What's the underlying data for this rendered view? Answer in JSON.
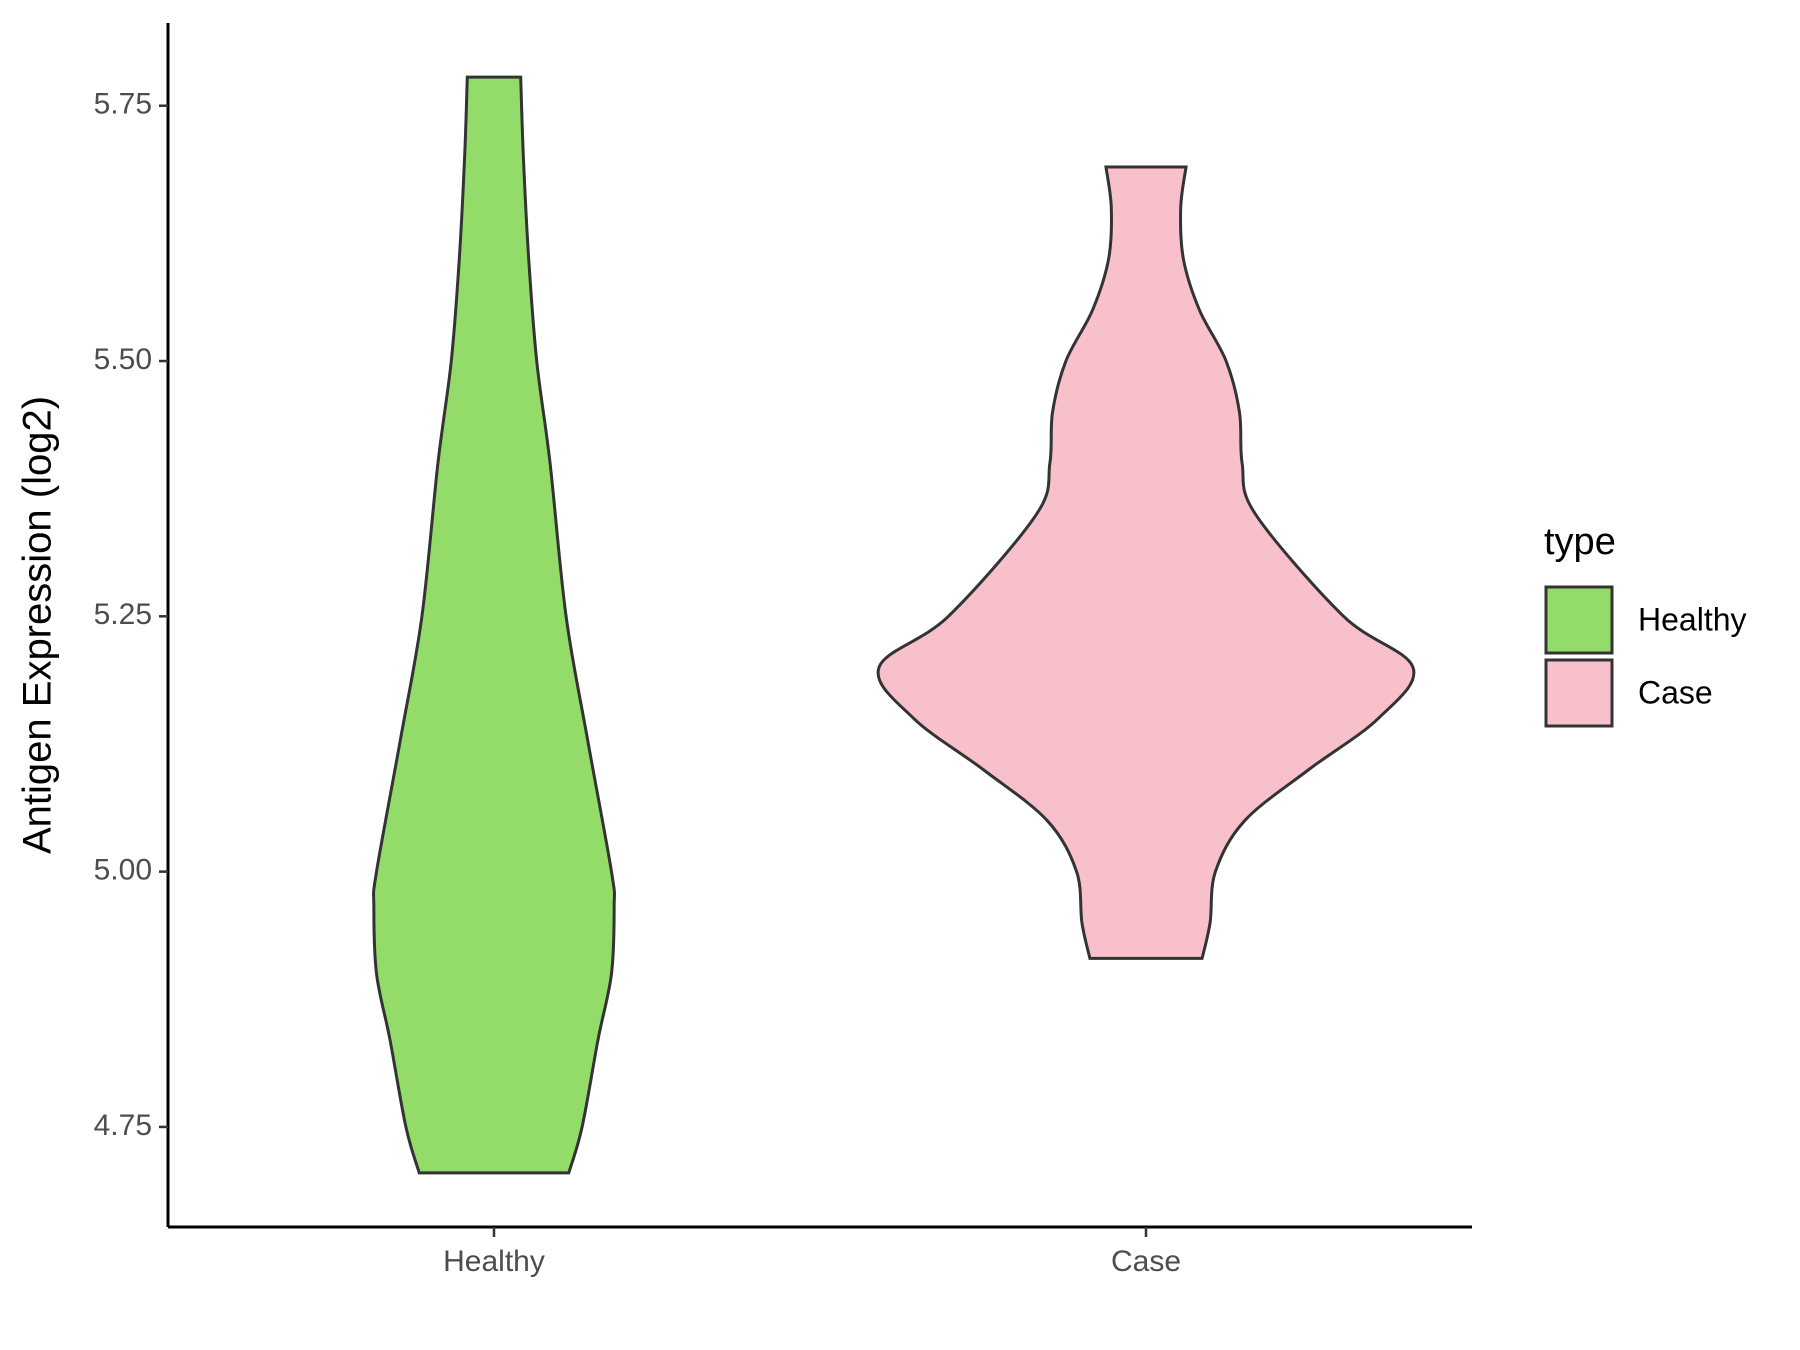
{
  "chart_data": {
    "type": "violin",
    "y_label": "Antigen Expression (log2)",
    "categories": [
      "Healthy",
      "Case"
    ],
    "legend_title": "type",
    "legend_position": "right",
    "series": [
      {
        "name": "Healthy",
        "color": "#93dc6a",
        "y": [
          5.778,
          5.7,
          5.6,
          5.5,
          5.4,
          5.25,
          5.13,
          5.0,
          4.966,
          4.9,
          4.836,
          4.75,
          4.705
        ],
        "density": [
          0.1,
          0.11,
          0.13,
          0.16,
          0.21,
          0.27,
          0.35,
          0.44,
          0.45,
          0.44,
          0.39,
          0.33,
          0.28
        ]
      },
      {
        "name": "Case",
        "color": "#f7c0cb",
        "y": [
          5.69,
          5.65,
          5.6,
          5.55,
          5.5,
          5.45,
          5.4,
          5.35,
          5.25,
          5.2,
          5.15,
          5.1,
          5.05,
          5.0,
          4.95,
          4.915
        ],
        "density": [
          0.15,
          0.13,
          0.14,
          0.2,
          0.3,
          0.35,
          0.36,
          0.41,
          0.74,
          1.0,
          0.87,
          0.61,
          0.37,
          0.26,
          0.24,
          0.21
        ]
      }
    ],
    "ylim": [
      4.652,
      5.831
    ],
    "yticks": [
      {
        "value": 4.75,
        "label": "4.75"
      },
      {
        "value": 5,
        "label": "5.00"
      },
      {
        "value": 5.25,
        "label": "5.25"
      },
      {
        "value": 5.5,
        "label": "5.50"
      },
      {
        "value": 5.75,
        "label": "5.75"
      }
    ],
    "grid": false
  }
}
